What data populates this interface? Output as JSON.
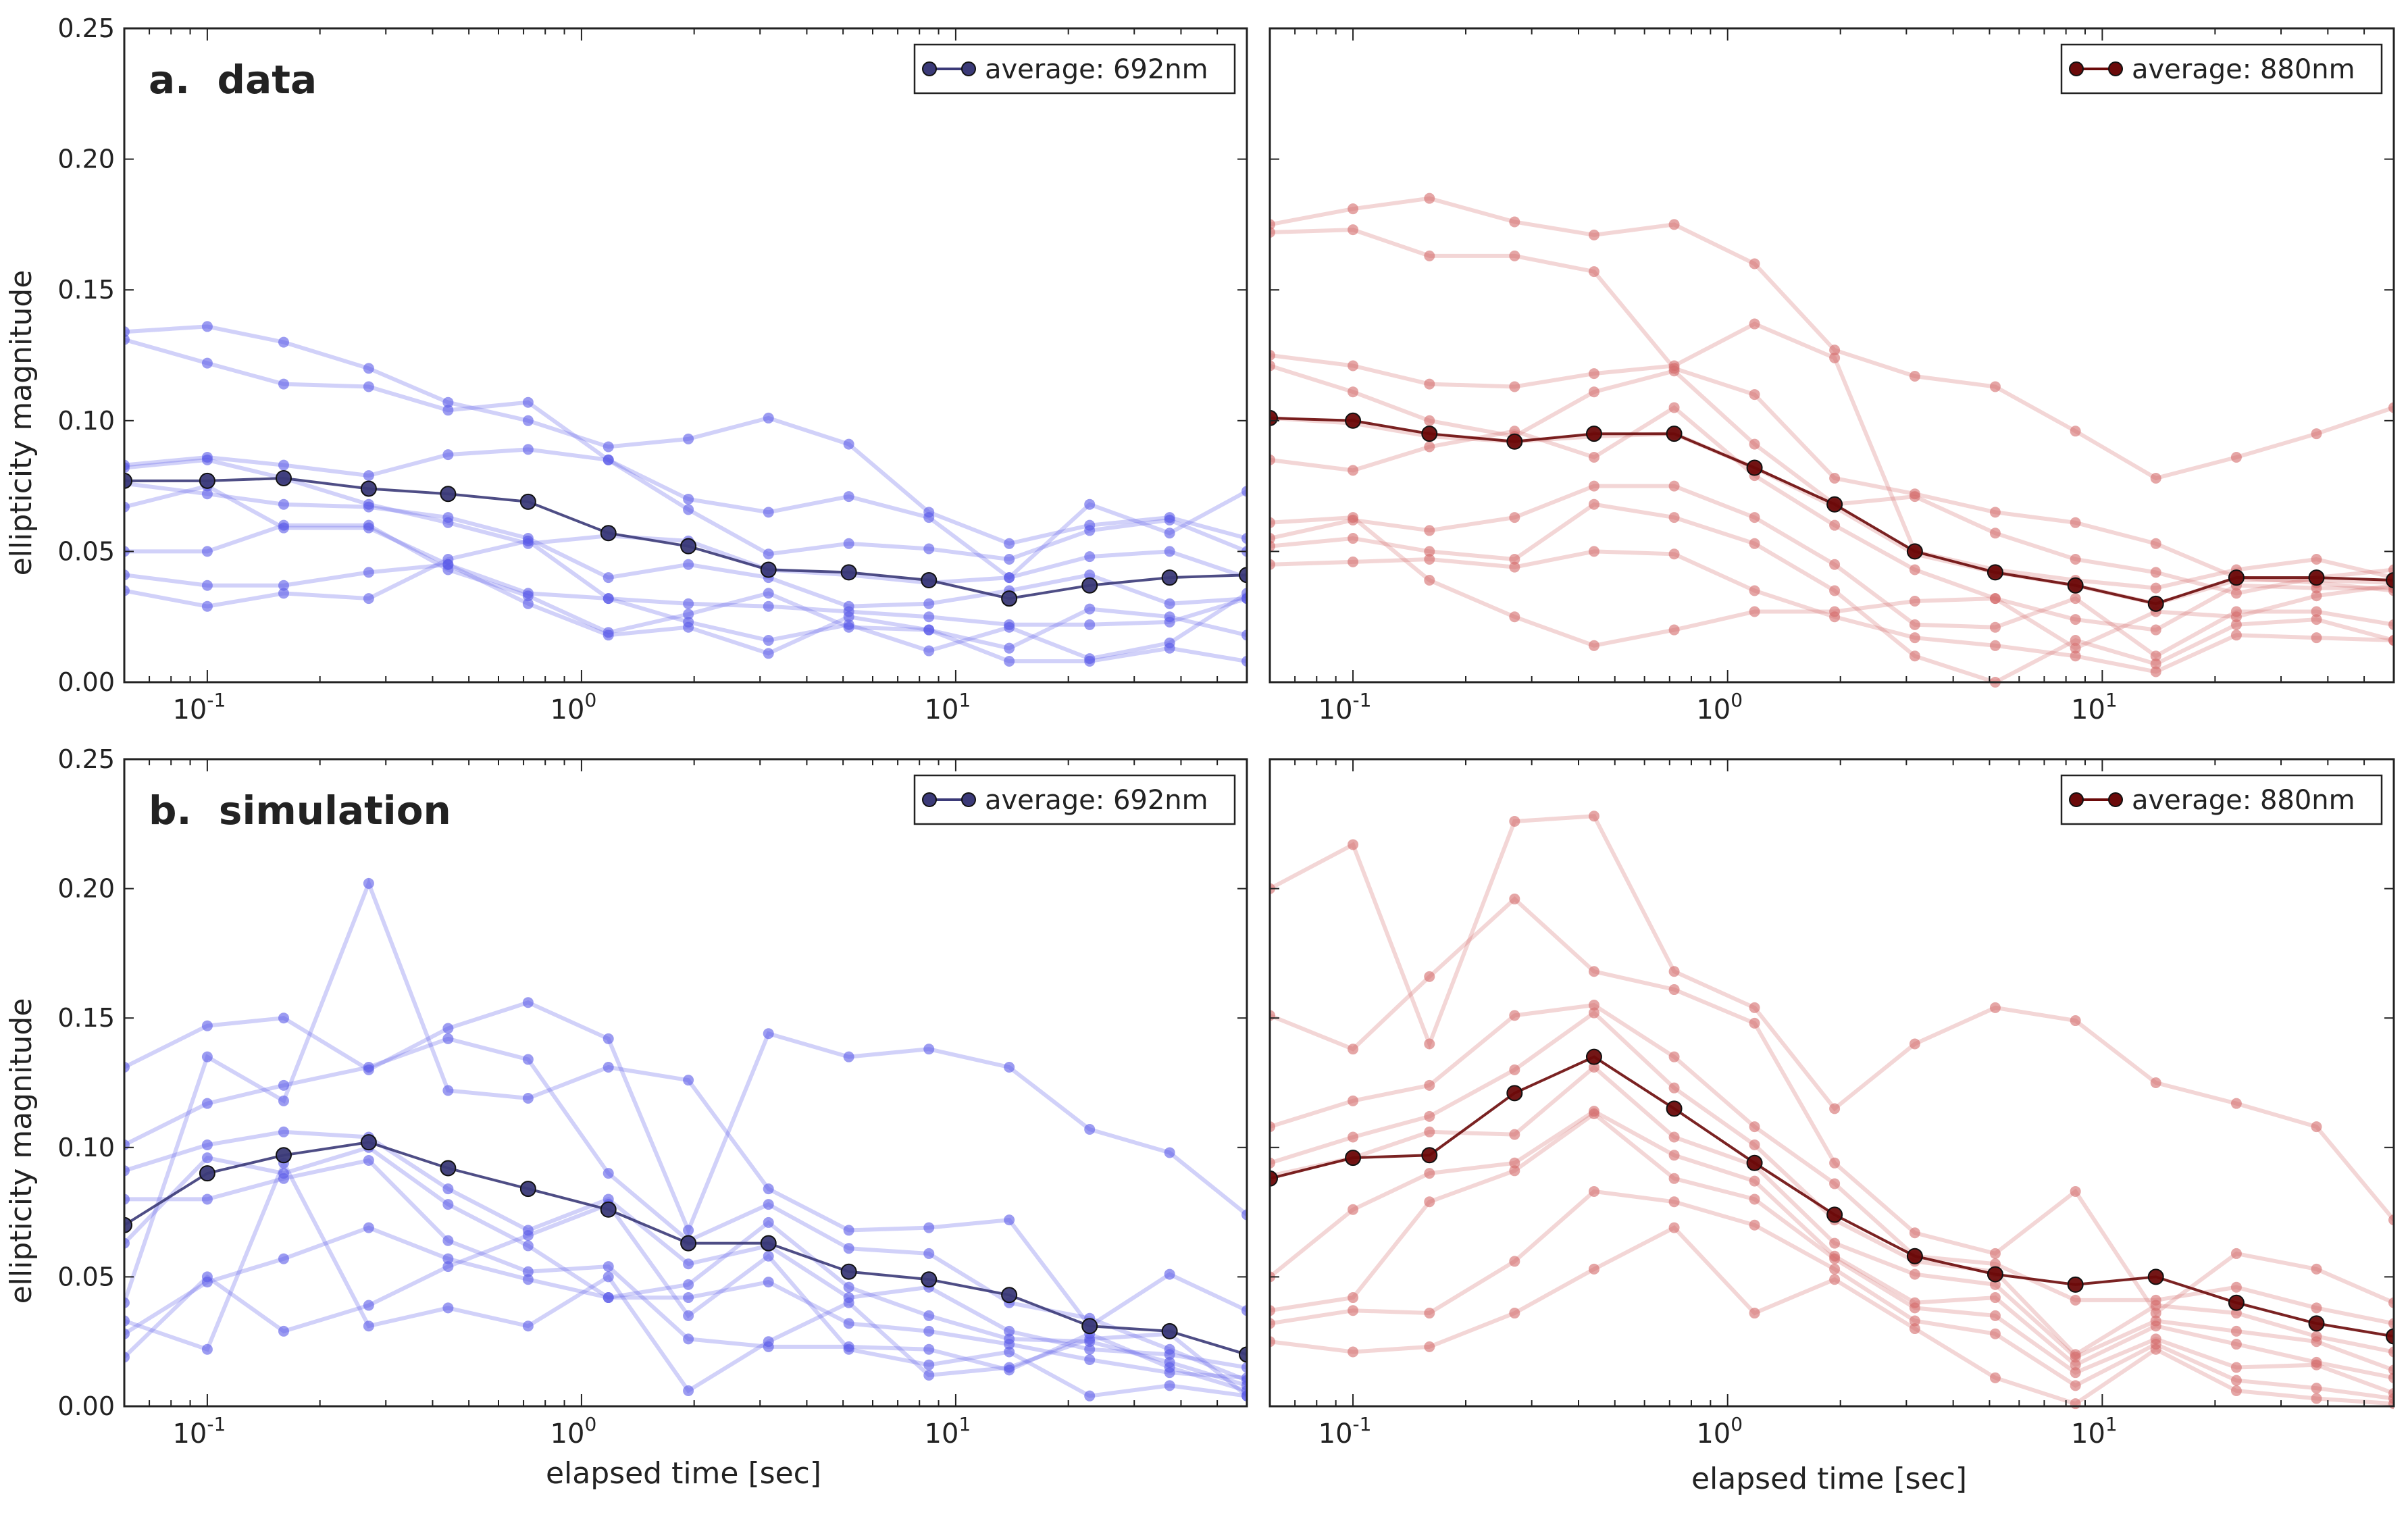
{
  "figure": {
    "ylabel": "ellipticity magnitude",
    "xlabel": "elapsed time [sec]"
  },
  "colors": {
    "blue_avg": "#3b3a78",
    "blue_light": "#5a5ae8",
    "red_avg": "#6b0a0a",
    "red_light": "#d46a6a",
    "axis": "#222222"
  },
  "chart_data": [
    {
      "id": "data-692",
      "type": "line",
      "xscale": "log",
      "xlim": [
        0.06,
        60
      ],
      "ylim": [
        0,
        0.25
      ],
      "yticks": [
        "0.00",
        "0.05",
        "0.10",
        "0.15",
        "0.20",
        "0.25"
      ],
      "xtick_base": "10",
      "xtick_exps": [
        "-1",
        "0",
        "1"
      ],
      "panel_label": "a.  data",
      "legend": "average: 692nm",
      "legend_loc": "top-right",
      "color": "blue",
      "x": [
        0.06,
        0.1,
        0.16,
        0.27,
        0.44,
        0.72,
        1.18,
        1.93,
        3.16,
        5.18,
        8.48,
        13.9,
        22.8,
        37.3,
        60
      ],
      "series": [
        {
          "name": "trace-1",
          "values": [
            0.134,
            0.136,
            0.13,
            0.12,
            0.107,
            0.1,
            0.09,
            0.093,
            0.101,
            0.091,
            0.065,
            0.053,
            0.06,
            0.063,
            0.055
          ]
        },
        {
          "name": "trace-2",
          "values": [
            0.131,
            0.122,
            0.114,
            0.113,
            0.104,
            0.107,
            0.085,
            0.07,
            0.065,
            0.071,
            0.063,
            0.04,
            0.068,
            0.057,
            0.073
          ]
        },
        {
          "name": "trace-3",
          "values": [
            0.083,
            0.086,
            0.083,
            0.079,
            0.087,
            0.089,
            0.085,
            0.066,
            0.049,
            0.053,
            0.051,
            0.047,
            0.058,
            0.062,
            0.05
          ]
        },
        {
          "name": "trace-4",
          "values": [
            0.082,
            0.085,
            0.078,
            0.068,
            0.061,
            0.053,
            0.056,
            0.054,
            0.043,
            0.041,
            0.038,
            0.04,
            0.048,
            0.05,
            0.04
          ]
        },
        {
          "name": "trace-5",
          "values": [
            0.076,
            0.072,
            0.068,
            0.067,
            0.063,
            0.055,
            0.04,
            0.045,
            0.04,
            0.029,
            0.03,
            0.035,
            0.041,
            0.03,
            0.032
          ]
        },
        {
          "name": "trace-6",
          "values": [
            0.067,
            0.075,
            0.059,
            0.059,
            0.045,
            0.034,
            0.032,
            0.03,
            0.029,
            0.027,
            0.025,
            0.022,
            0.022,
            0.023,
            0.032
          ]
        },
        {
          "name": "trace-7",
          "values": [
            0.05,
            0.05,
            0.06,
            0.06,
            0.043,
            0.033,
            0.019,
            0.026,
            0.034,
            0.021,
            0.02,
            0.013,
            0.028,
            0.025,
            0.018
          ]
        },
        {
          "name": "trace-8",
          "values": [
            0.041,
            0.037,
            0.037,
            0.042,
            0.045,
            0.03,
            0.018,
            0.021,
            0.011,
            0.025,
            0.02,
            0.008,
            0.008,
            0.013,
            0.008
          ]
        },
        {
          "name": "trace-9",
          "values": [
            0.035,
            0.029,
            0.034,
            0.032,
            0.047,
            0.054,
            0.032,
            0.023,
            0.016,
            0.022,
            0.012,
            0.021,
            0.009,
            0.015,
            0.034
          ]
        },
        {
          "name": "average: 692nm",
          "average": true,
          "values": [
            0.077,
            0.077,
            0.078,
            0.074,
            0.072,
            0.069,
            0.057,
            0.052,
            0.043,
            0.042,
            0.039,
            0.032,
            0.037,
            0.04,
            0.041
          ]
        }
      ]
    },
    {
      "id": "data-880",
      "type": "line",
      "xscale": "log",
      "xlim": [
        0.06,
        60
      ],
      "ylim": [
        0,
        0.25
      ],
      "xtick_base": "10",
      "xtick_exps": [
        "-1",
        "0",
        "1"
      ],
      "legend": "average: 880nm",
      "legend_loc": "top-right",
      "color": "red",
      "x": [
        0.06,
        0.1,
        0.16,
        0.27,
        0.44,
        0.72,
        1.18,
        1.93,
        3.16,
        5.18,
        8.48,
        13.9,
        22.8,
        37.3,
        60
      ],
      "series": [
        {
          "name": "trace-1",
          "values": [
            0.175,
            0.181,
            0.185,
            0.176,
            0.171,
            0.175,
            0.16,
            0.127,
            0.117,
            0.113,
            0.096,
            0.078,
            0.086,
            0.095,
            0.105
          ]
        },
        {
          "name": "trace-2",
          "values": [
            0.172,
            0.173,
            0.163,
            0.163,
            0.157,
            0.12,
            0.11,
            0.078,
            0.072,
            0.065,
            0.061,
            0.053,
            0.04,
            0.038,
            0.035
          ]
        },
        {
          "name": "trace-3",
          "values": [
            0.125,
            0.121,
            0.114,
            0.113,
            0.118,
            0.121,
            0.137,
            0.124,
            0.05,
            0.043,
            0.039,
            0.036,
            0.043,
            0.047,
            0.04
          ]
        },
        {
          "name": "trace-4",
          "values": [
            0.121,
            0.111,
            0.1,
            0.094,
            0.111,
            0.119,
            0.091,
            0.068,
            0.071,
            0.057,
            0.047,
            0.042,
            0.034,
            0.04,
            0.043
          ]
        },
        {
          "name": "trace-5",
          "values": [
            0.101,
            0.099,
            0.094,
            0.092,
            0.094,
            0.095,
            0.082,
            0.067,
            0.049,
            0.042,
            0.037,
            0.03,
            0.039,
            0.039,
            0.038
          ]
        },
        {
          "name": "trace-6",
          "values": [
            0.085,
            0.081,
            0.09,
            0.096,
            0.086,
            0.105,
            0.079,
            0.06,
            0.043,
            0.032,
            0.024,
            0.02,
            0.037,
            0.036,
            0.036
          ]
        },
        {
          "name": "trace-7",
          "values": [
            0.055,
            0.062,
            0.058,
            0.063,
            0.075,
            0.075,
            0.063,
            0.045,
            0.022,
            0.021,
            0.032,
            0.01,
            0.027,
            0.027,
            0.022
          ]
        },
        {
          "name": "trace-8",
          "values": [
            0.052,
            0.055,
            0.05,
            0.047,
            0.068,
            0.063,
            0.053,
            0.035,
            0.01,
            0.0,
            0.016,
            0.007,
            0.022,
            0.024,
            0.016
          ]
        },
        {
          "name": "trace-9",
          "values": [
            0.045,
            0.046,
            0.047,
            0.044,
            0.05,
            0.049,
            0.035,
            0.025,
            0.017,
            0.014,
            0.01,
            0.004,
            0.018,
            0.017,
            0.016
          ]
        },
        {
          "name": "trace-10",
          "values": [
            0.061,
            0.063,
            0.039,
            0.025,
            0.014,
            0.02,
            0.027,
            0.027,
            0.031,
            0.032,
            0.013,
            0.027,
            0.025,
            0.033,
            0.037
          ]
        },
        {
          "name": "average: 880nm",
          "average": true,
          "values": [
            0.101,
            0.1,
            0.095,
            0.092,
            0.095,
            0.095,
            0.082,
            0.068,
            0.05,
            0.042,
            0.037,
            0.03,
            0.04,
            0.04,
            0.039
          ]
        }
      ]
    },
    {
      "id": "sim-692",
      "type": "line",
      "xscale": "log",
      "xlim": [
        0.06,
        60
      ],
      "ylim": [
        0,
        0.25
      ],
      "yticks": [
        "0.00",
        "0.05",
        "0.10",
        "0.15",
        "0.20",
        "0.25"
      ],
      "xtick_base": "10",
      "xtick_exps": [
        "-1",
        "0",
        "1"
      ],
      "panel_label": "b.  simulation",
      "legend": "average: 692nm",
      "legend_loc": "top-right",
      "color": "blue",
      "x": [
        0.06,
        0.1,
        0.16,
        0.27,
        0.44,
        0.72,
        1.18,
        1.93,
        3.16,
        5.18,
        8.48,
        13.9,
        22.8,
        37.3,
        60
      ],
      "series": [
        {
          "name": "trace-1",
          "values": [
            0.131,
            0.147,
            0.15,
            0.13,
            0.146,
            0.156,
            0.142,
            0.068,
            0.144,
            0.135,
            0.138,
            0.131,
            0.107,
            0.098,
            0.074
          ]
        },
        {
          "name": "trace-2",
          "values": [
            0.04,
            0.135,
            0.118,
            0.202,
            0.122,
            0.119,
            0.131,
            0.126,
            0.084,
            0.068,
            0.069,
            0.072,
            0.031,
            0.051,
            0.037
          ]
        },
        {
          "name": "trace-3",
          "values": [
            0.101,
            0.117,
            0.124,
            0.131,
            0.142,
            0.134,
            0.09,
            0.064,
            0.078,
            0.061,
            0.059,
            0.04,
            0.034,
            0.022,
            0.01
          ]
        },
        {
          "name": "trace-4",
          "values": [
            0.091,
            0.101,
            0.106,
            0.104,
            0.084,
            0.068,
            0.08,
            0.055,
            0.062,
            0.042,
            0.046,
            0.029,
            0.022,
            0.02,
            0.015
          ]
        },
        {
          "name": "trace-5",
          "values": [
            0.063,
            0.096,
            0.09,
            0.1,
            0.078,
            0.062,
            0.042,
            0.047,
            0.071,
            0.046,
            0.035,
            0.026,
            0.025,
            0.017,
            0.008
          ]
        },
        {
          "name": "trace-6",
          "values": [
            0.028,
            0.048,
            0.057,
            0.069,
            0.057,
            0.049,
            0.042,
            0.042,
            0.048,
            0.032,
            0.029,
            0.024,
            0.018,
            0.013,
            0.011
          ]
        },
        {
          "name": "trace-7",
          "values": [
            0.019,
            0.05,
            0.029,
            0.039,
            0.054,
            0.066,
            0.078,
            0.035,
            0.058,
            0.022,
            0.016,
            0.021,
            0.004,
            0.008,
            0.004
          ]
        },
        {
          "name": "trace-8",
          "values": [
            0.033,
            0.022,
            0.094,
            0.031,
            0.038,
            0.031,
            0.05,
            0.006,
            0.025,
            0.04,
            0.012,
            0.015,
            0.026,
            0.028,
            0.004
          ]
        },
        {
          "name": "trace-9",
          "values": [
            0.08,
            0.08,
            0.088,
            0.095,
            0.064,
            0.052,
            0.054,
            0.026,
            0.023,
            0.023,
            0.022,
            0.014,
            0.028,
            0.015,
            0.006
          ]
        },
        {
          "name": "average: 692nm",
          "average": true,
          "values": [
            0.07,
            0.09,
            0.097,
            0.102,
            0.092,
            0.084,
            0.076,
            0.063,
            0.063,
            0.052,
            0.049,
            0.043,
            0.031,
            0.029,
            0.02
          ]
        }
      ]
    },
    {
      "id": "sim-880",
      "type": "line",
      "xscale": "log",
      "xlim": [
        0.06,
        60
      ],
      "ylim": [
        0,
        0.25
      ],
      "xtick_base": "10",
      "xtick_exps": [
        "-1",
        "0",
        "1"
      ],
      "legend": "average: 880nm",
      "legend_loc": "top-right",
      "color": "red",
      "x": [
        0.06,
        0.1,
        0.16,
        0.27,
        0.44,
        0.72,
        1.18,
        1.93,
        3.16,
        5.18,
        8.48,
        13.9,
        22.8,
        37.3,
        60
      ],
      "series": [
        {
          "name": "trace-1",
          "values": [
            0.2,
            0.217,
            0.14,
            0.226,
            0.228,
            0.168,
            0.154,
            0.115,
            0.14,
            0.154,
            0.149,
            0.125,
            0.117,
            0.108,
            0.072
          ]
        },
        {
          "name": "trace-2",
          "values": [
            0.151,
            0.138,
            0.166,
            0.196,
            0.168,
            0.161,
            0.148,
            0.094,
            0.067,
            0.059,
            0.083,
            0.036,
            0.059,
            0.053,
            0.04
          ]
        },
        {
          "name": "trace-3",
          "values": [
            0.108,
            0.118,
            0.124,
            0.151,
            0.155,
            0.135,
            0.108,
            0.086,
            0.058,
            0.055,
            0.041,
            0.041,
            0.046,
            0.038,
            0.032
          ]
        },
        {
          "name": "trace-4",
          "values": [
            0.094,
            0.104,
            0.112,
            0.13,
            0.152,
            0.123,
            0.101,
            0.072,
            0.056,
            0.052,
            0.02,
            0.039,
            0.036,
            0.027,
            0.021
          ]
        },
        {
          "name": "trace-5",
          "values": [
            0.089,
            0.096,
            0.106,
            0.105,
            0.131,
            0.104,
            0.093,
            0.063,
            0.051,
            0.047,
            0.019,
            0.033,
            0.029,
            0.025,
            0.014
          ]
        },
        {
          "name": "trace-6",
          "values": [
            0.05,
            0.076,
            0.09,
            0.094,
            0.114,
            0.097,
            0.087,
            0.058,
            0.04,
            0.042,
            0.016,
            0.031,
            0.024,
            0.017,
            0.011
          ]
        },
        {
          "name": "trace-7",
          "values": [
            0.037,
            0.042,
            0.079,
            0.091,
            0.113,
            0.088,
            0.08,
            0.057,
            0.038,
            0.035,
            0.013,
            0.026,
            0.015,
            0.016,
            0.005
          ]
        },
        {
          "name": "trace-8",
          "values": [
            0.032,
            0.037,
            0.036,
            0.056,
            0.083,
            0.079,
            0.07,
            0.053,
            0.033,
            0.028,
            0.008,
            0.024,
            0.01,
            0.007,
            0.003
          ]
        },
        {
          "name": "trace-9",
          "values": [
            0.025,
            0.021,
            0.023,
            0.036,
            0.053,
            0.069,
            0.036,
            0.049,
            0.03,
            0.011,
            0.001,
            0.022,
            0.006,
            0.003,
            0.001
          ]
        },
        {
          "name": "average: 880nm",
          "average": true,
          "values": [
            0.088,
            0.096,
            0.097,
            0.121,
            0.135,
            0.115,
            0.094,
            0.074,
            0.058,
            0.051,
            0.047,
            0.05,
            0.04,
            0.032,
            0.027
          ]
        }
      ]
    }
  ]
}
